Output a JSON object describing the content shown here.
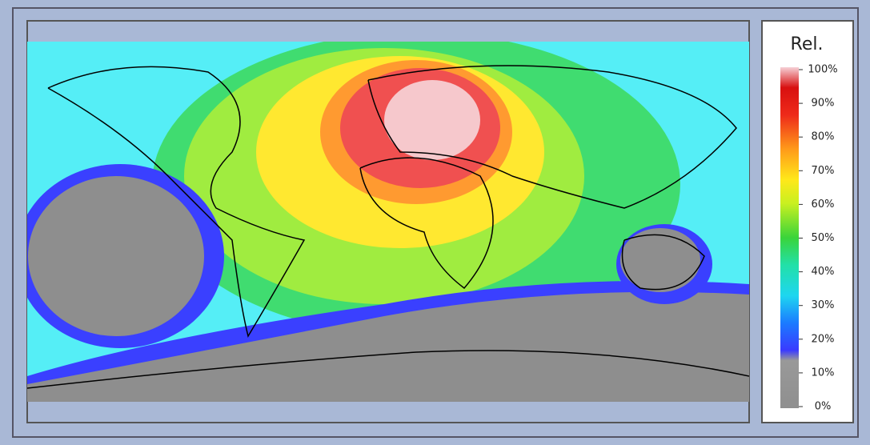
{
  "legend": {
    "title": "Rel.",
    "ticks": [
      {
        "value": 0,
        "label": "0%"
      },
      {
        "value": 10,
        "label": "10%"
      },
      {
        "value": 20,
        "label": "20%"
      },
      {
        "value": 30,
        "label": "30%"
      },
      {
        "value": 40,
        "label": "40%"
      },
      {
        "value": 50,
        "label": "50%"
      },
      {
        "value": 60,
        "label": "60%"
      },
      {
        "value": 70,
        "label": "70%"
      },
      {
        "value": 80,
        "label": "80%"
      },
      {
        "value": 90,
        "label": "90%"
      },
      {
        "value": 100,
        "label": "100%"
      }
    ]
  }
}
